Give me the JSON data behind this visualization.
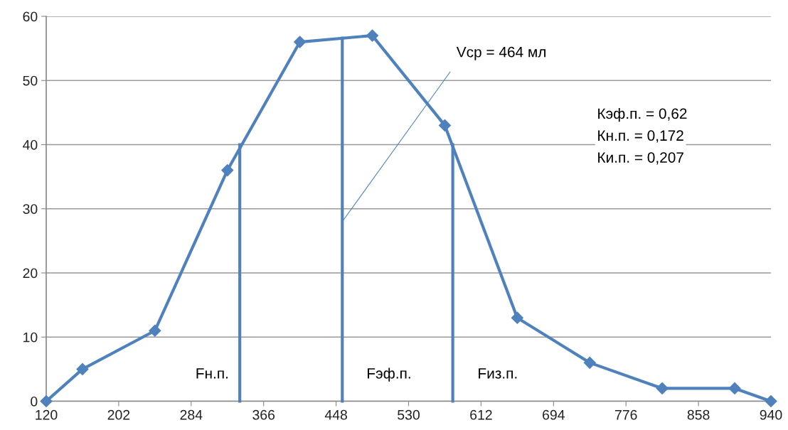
{
  "chart_data": {
    "type": "line",
    "marker": "diamond",
    "grid": "y",
    "legend": false,
    "x": [
      120,
      161,
      243,
      325,
      407,
      489,
      571,
      653,
      735,
      817,
      899,
      940
    ],
    "xlim": [
      120,
      940
    ],
    "xticks": [
      120,
      202,
      284,
      366,
      448,
      530,
      612,
      694,
      776,
      858,
      940
    ],
    "ylim": [
      0,
      60
    ],
    "yticks": [
      0,
      10,
      20,
      30,
      40,
      50,
      60
    ],
    "series": [
      {
        "color": "#4f81bd",
        "values": [
          0,
          5,
          11,
          36,
          56,
          57,
          43,
          13,
          6,
          2,
          2,
          0
        ]
      },
      {
        "type": "line",
        "marker": "none",
        "color": "#4f81bd",
        "x": [
          339,
          339
        ],
        "values": [
          0,
          40
        ]
      },
      {
        "type": "line",
        "marker": "none",
        "color": "#4f81bd",
        "x": [
          455,
          455
        ],
        "values": [
          0,
          56.6
        ]
      },
      {
        "type": "line",
        "marker": "none",
        "color": "#4f81bd",
        "x": [
          580,
          580
        ],
        "values": [
          0,
          40
        ]
      }
    ],
    "annotations": [
      {
        "text": "Vср = 464 мл",
        "x": 455,
        "y": 28
      },
      "Fн.п.",
      "Fэф.п.",
      "Fиз.п.",
      "Кэф.п. = 0,62",
      "Кн.п. = 0,172",
      "Ки.п. = 0,207"
    ]
  }
}
